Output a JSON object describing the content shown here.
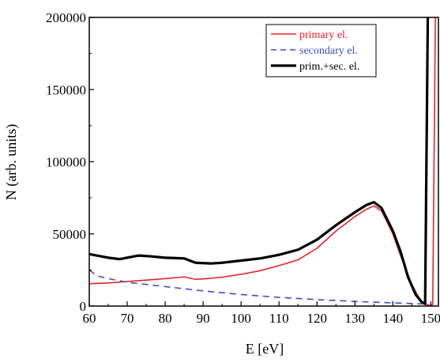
{
  "chart_data": {
    "type": "line",
    "xlabel": "E [eV]",
    "ylabel": "N (arb. units)",
    "xlim": [
      60,
      152
    ],
    "ylim": [
      0,
      200000
    ],
    "x_ticks": [
      60,
      70,
      80,
      90,
      100,
      110,
      120,
      130,
      140,
      150
    ],
    "y_ticks": [
      0,
      50000,
      100000,
      150000,
      200000
    ],
    "x_tick_labels": [
      "60",
      "70",
      "80",
      "90",
      "100",
      "110",
      "120",
      "130",
      "140",
      "150"
    ],
    "y_tick_labels": [
      "0",
      "50000",
      "100000",
      "150000",
      "200000"
    ],
    "grid": false,
    "legend_position": "top-right",
    "series": [
      {
        "name": "primary el.",
        "color": "#e8232a",
        "line_style": "solid",
        "points": [
          [
            60,
            15500
          ],
          [
            65,
            16000
          ],
          [
            70,
            17000
          ],
          [
            75,
            18000
          ],
          [
            80,
            19000
          ],
          [
            85,
            20200
          ],
          [
            88,
            18500
          ],
          [
            90,
            18800
          ],
          [
            95,
            20000
          ],
          [
            100,
            22000
          ],
          [
            105,
            24500
          ],
          [
            110,
            28000
          ],
          [
            115,
            32000
          ],
          [
            120,
            40000
          ],
          [
            125,
            52000
          ],
          [
            130,
            62000
          ],
          [
            133,
            67000
          ],
          [
            135,
            69500
          ],
          [
            137,
            66000
          ],
          [
            140,
            50000
          ],
          [
            142,
            35000
          ],
          [
            145,
            15000
          ],
          [
            147,
            5000
          ],
          [
            148.5,
            1500
          ],
          [
            149.5,
            500
          ],
          [
            150.5,
            1000
          ],
          [
            151.2,
            200000
          ]
        ]
      },
      {
        "name": "secondary el.",
        "color": "#3a4fbf",
        "line_style": "dashed",
        "points": [
          [
            60,
            25000
          ],
          [
            62,
            21000
          ],
          [
            65,
            19000
          ],
          [
            70,
            16500
          ],
          [
            80,
            13500
          ],
          [
            90,
            10500
          ],
          [
            100,
            8000
          ],
          [
            110,
            6000
          ],
          [
            120,
            4500
          ],
          [
            130,
            3200
          ],
          [
            140,
            2200
          ],
          [
            148,
            1500
          ],
          [
            149.5,
            1500
          ]
        ]
      },
      {
        "name": "prim.+sec. el.",
        "color": "#000000",
        "line_style": "solid",
        "points": [
          [
            60,
            36000
          ],
          [
            63,
            34500
          ],
          [
            65,
            33500
          ],
          [
            68,
            32500
          ],
          [
            70,
            33500
          ],
          [
            73,
            35000
          ],
          [
            76,
            34500
          ],
          [
            80,
            33500
          ],
          [
            85,
            33000
          ],
          [
            88,
            30000
          ],
          [
            92,
            29500
          ],
          [
            95,
            30000
          ],
          [
            100,
            31500
          ],
          [
            105,
            33000
          ],
          [
            110,
            35500
          ],
          [
            115,
            39000
          ],
          [
            120,
            46000
          ],
          [
            125,
            56000
          ],
          [
            130,
            65000
          ],
          [
            133,
            70000
          ],
          [
            135,
            72000
          ],
          [
            137,
            68000
          ],
          [
            140,
            52000
          ],
          [
            142,
            38000
          ],
          [
            144,
            20000
          ],
          [
            146,
            8000
          ],
          [
            147.5,
            3000
          ],
          [
            148.5,
            1500
          ],
          [
            149.2,
            200000
          ]
        ]
      }
    ]
  }
}
